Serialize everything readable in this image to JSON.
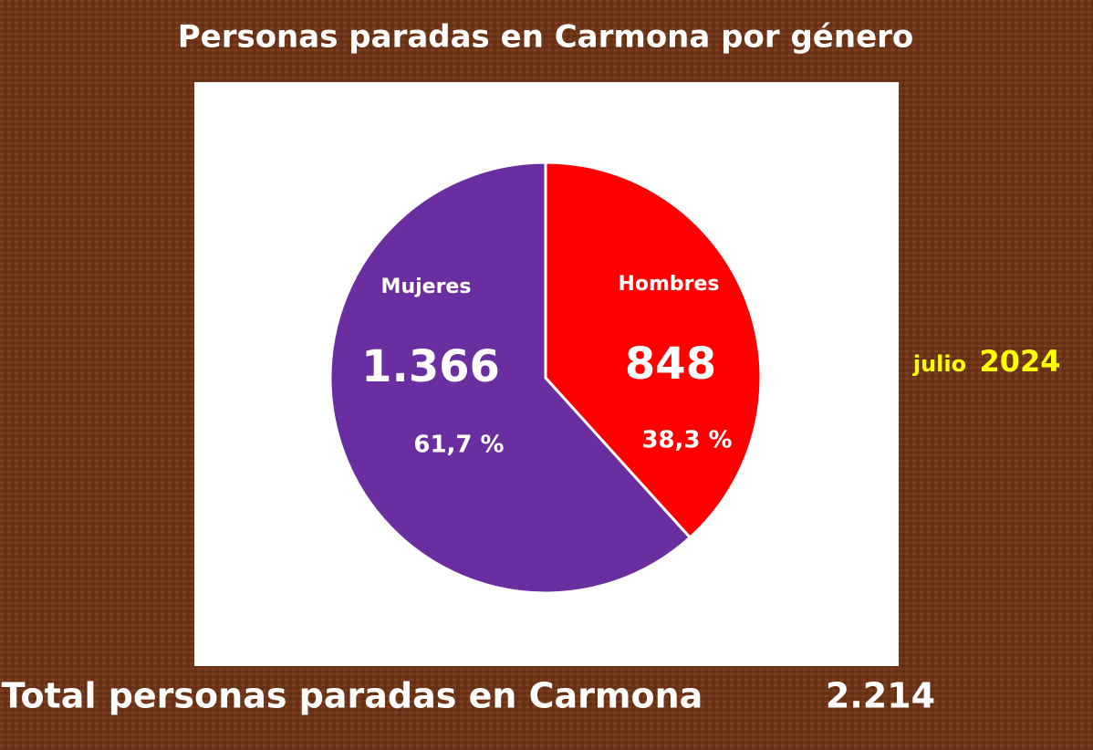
{
  "chart_data": {
    "type": "pie",
    "title": "Personas paradas en Carmona por género",
    "categories": [
      "Mujeres",
      "Hombres"
    ],
    "values": [
      1366,
      848
    ],
    "value_labels": [
      "1.366",
      "848"
    ],
    "percents": [
      61.7,
      38.3
    ],
    "percent_labels": [
      "61,7 %",
      "38,3 %"
    ],
    "colors": [
      "#6a2ea0",
      "#ff0000"
    ],
    "total_text": "Total personas paradas en Carmona",
    "total": 2214,
    "total_label": "2.214",
    "period_month": "julio",
    "period_year": "2024"
  }
}
